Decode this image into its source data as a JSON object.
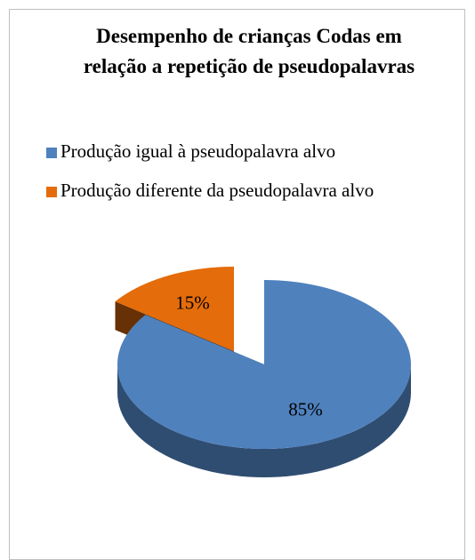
{
  "chart_data": {
    "type": "pie",
    "title": "Desempenho de crianças Codas em relação a repetição de pseudopalavras",
    "categories": [
      "Produção igual à pseudopalavra alvo",
      "Produção diferente da pseudopalavra alvo"
    ],
    "values": [
      85,
      15
    ],
    "value_labels": [
      "85%",
      "15%"
    ],
    "colors": [
      "#4f81bd",
      "#e46c0a"
    ],
    "legend": "top"
  }
}
